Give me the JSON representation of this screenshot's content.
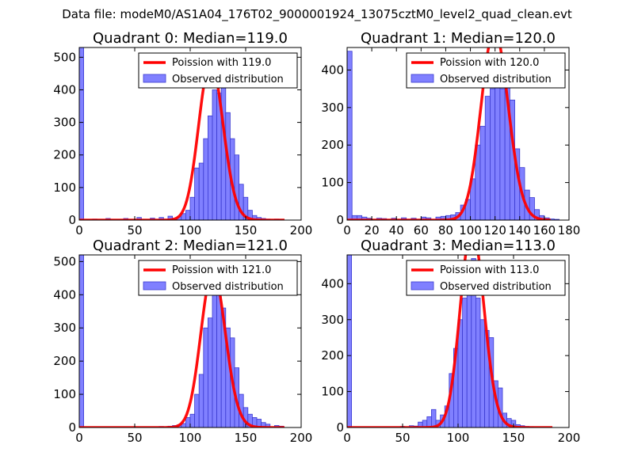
{
  "figure": {
    "suptitle": "Data file: modeM0/AS1A04_176T02_9000001924_13075cztM0_level2_quad_clean.evt"
  },
  "colors": {
    "bar_fill": "#8080ff",
    "bar_stroke": "#3b3bd0",
    "fit_line": "#ff0000"
  },
  "chart_data": [
    {
      "type": "bar",
      "title": "Quadrant 0: Median=119.0",
      "xlim": [
        0,
        200
      ],
      "ylim": [
        0,
        530
      ],
      "xticks": [
        0,
        50,
        100,
        150,
        200
      ],
      "yticks": [
        0,
        100,
        200,
        300,
        400,
        500
      ],
      "bin_width": 4,
      "median": 119,
      "legend": [
        "Poission with 119.0",
        "Observed distribution"
      ],
      "bins": [
        [
          0,
          530
        ],
        [
          12,
          3
        ],
        [
          24,
          5
        ],
        [
          40,
          5
        ],
        [
          52,
          8
        ],
        [
          64,
          6
        ],
        [
          72,
          8
        ],
        [
          80,
          12
        ],
        [
          84,
          6
        ],
        [
          88,
          10
        ],
        [
          92,
          20
        ],
        [
          96,
          30
        ],
        [
          100,
          70
        ],
        [
          104,
          160
        ],
        [
          108,
          175
        ],
        [
          112,
          250
        ],
        [
          116,
          320
        ],
        [
          120,
          400
        ],
        [
          124,
          390
        ],
        [
          128,
          430
        ],
        [
          132,
          330
        ],
        [
          136,
          250
        ],
        [
          140,
          200
        ],
        [
          144,
          110
        ],
        [
          148,
          70
        ],
        [
          152,
          30
        ],
        [
          156,
          14
        ],
        [
          160,
          8
        ],
        [
          164,
          5
        ],
        [
          168,
          3
        ],
        [
          176,
          3
        ],
        [
          180,
          2
        ]
      ]
    },
    {
      "type": "bar",
      "title": "Quadrant 1: Median=120.0",
      "xlim": [
        0,
        180
      ],
      "ylim": [
        0,
        460
      ],
      "xticks": [
        0,
        20,
        40,
        60,
        80,
        100,
        120,
        140,
        160,
        180
      ],
      "yticks": [
        0,
        100,
        200,
        300,
        400
      ],
      "bin_width": 4,
      "median": 120,
      "legend": [
        "Poission with 120.0",
        "Observed distribution"
      ],
      "bins": [
        [
          0,
          450
        ],
        [
          4,
          12
        ],
        [
          8,
          12
        ],
        [
          12,
          8
        ],
        [
          16,
          5
        ],
        [
          24,
          5
        ],
        [
          28,
          4
        ],
        [
          36,
          5
        ],
        [
          44,
          6
        ],
        [
          52,
          5
        ],
        [
          60,
          8
        ],
        [
          64,
          6
        ],
        [
          72,
          8
        ],
        [
          76,
          10
        ],
        [
          80,
          12
        ],
        [
          84,
          14
        ],
        [
          88,
          20
        ],
        [
          92,
          40
        ],
        [
          96,
          55
        ],
        [
          100,
          110
        ],
        [
          104,
          200
        ],
        [
          108,
          250
        ],
        [
          112,
          330
        ],
        [
          116,
          350
        ],
        [
          120,
          430
        ],
        [
          124,
          350
        ],
        [
          128,
          380
        ],
        [
          132,
          320
        ],
        [
          136,
          190
        ],
        [
          140,
          140
        ],
        [
          144,
          80
        ],
        [
          148,
          60
        ],
        [
          152,
          28
        ],
        [
          156,
          12
        ],
        [
          160,
          6
        ],
        [
          164,
          3
        ],
        [
          168,
          2
        ]
      ]
    },
    {
      "type": "bar",
      "title": "Quadrant 2: Median=121.0",
      "xlim": [
        0,
        200
      ],
      "ylim": [
        0,
        520
      ],
      "xticks": [
        0,
        50,
        100,
        150,
        200
      ],
      "yticks": [
        0,
        100,
        200,
        300,
        400,
        500
      ],
      "bin_width": 4,
      "median": 121,
      "legend": [
        "Poission with 121.0",
        "Observed distribution"
      ],
      "bins": [
        [
          0,
          520
        ],
        [
          72,
          3
        ],
        [
          80,
          4
        ],
        [
          84,
          6
        ],
        [
          88,
          8
        ],
        [
          92,
          12
        ],
        [
          96,
          30
        ],
        [
          100,
          40
        ],
        [
          104,
          100
        ],
        [
          108,
          160
        ],
        [
          112,
          300
        ],
        [
          116,
          330
        ],
        [
          120,
          450
        ],
        [
          124,
          410
        ],
        [
          128,
          360
        ],
        [
          132,
          300
        ],
        [
          136,
          270
        ],
        [
          140,
          180
        ],
        [
          144,
          100
        ],
        [
          148,
          60
        ],
        [
          152,
          40
        ],
        [
          156,
          30
        ],
        [
          160,
          25
        ],
        [
          164,
          15
        ],
        [
          168,
          10
        ],
        [
          176,
          6
        ],
        [
          180,
          4
        ]
      ]
    },
    {
      "type": "bar",
      "title": "Quadrant 3: Median=113.0",
      "xlim": [
        0,
        200
      ],
      "ylim": [
        0,
        480
      ],
      "xticks": [
        0,
        50,
        100,
        150,
        200
      ],
      "yticks": [
        0,
        100,
        200,
        300,
        400
      ],
      "bin_width": 4,
      "median": 113,
      "legend": [
        "Poission with 113.0",
        "Observed distribution"
      ],
      "bins": [
        [
          0,
          480
        ],
        [
          48,
          3
        ],
        [
          56,
          5
        ],
        [
          60,
          4
        ],
        [
          64,
          15
        ],
        [
          68,
          20
        ],
        [
          72,
          30
        ],
        [
          76,
          50
        ],
        [
          80,
          20
        ],
        [
          84,
          35
        ],
        [
          88,
          60
        ],
        [
          92,
          150
        ],
        [
          96,
          220
        ],
        [
          100,
          300
        ],
        [
          104,
          360
        ],
        [
          108,
          440
        ],
        [
          112,
          470
        ],
        [
          116,
          360
        ],
        [
          120,
          300
        ],
        [
          124,
          270
        ],
        [
          128,
          250
        ],
        [
          132,
          130
        ],
        [
          136,
          110
        ],
        [
          140,
          40
        ],
        [
          144,
          25
        ],
        [
          148,
          20
        ],
        [
          152,
          8
        ],
        [
          156,
          5
        ],
        [
          160,
          3
        ],
        [
          164,
          2
        ]
      ]
    }
  ]
}
